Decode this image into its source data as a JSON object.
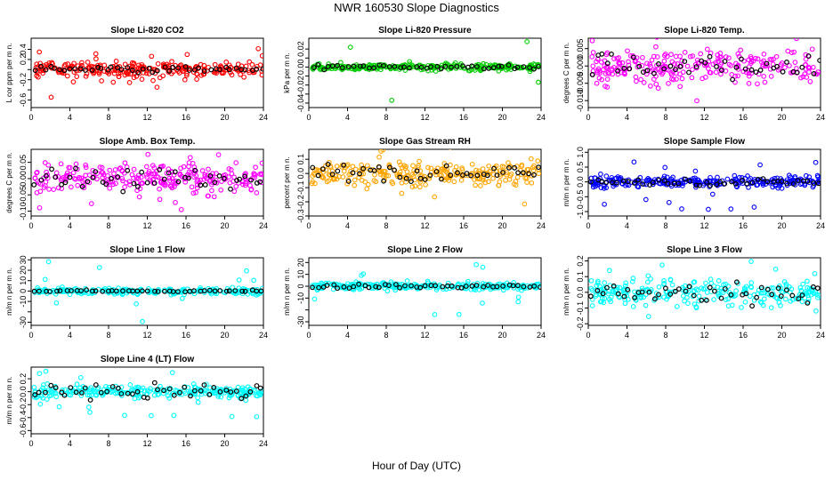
{
  "page_title": "NWR  160530  Slope Diagnostics",
  "x_axis_label": "Hour of Day (UTC)",
  "colors": {
    "highlight": "#000000",
    "red": "#ff0000",
    "green": "#00cc00",
    "magenta": "#ff00ff",
    "orange": "#ffa500",
    "blue": "#0000ff",
    "cyan": "#00ffff"
  },
  "chart_data": [
    {
      "type": "scatter",
      "title": "Slope Li-820 CO2",
      "ylabel": "L cor ppm per m n.",
      "xlim": [
        0,
        24
      ],
      "xticks": [
        0,
        4,
        8,
        12,
        16,
        20,
        24
      ],
      "ylim": [
        -0.75,
        0.62
      ],
      "yticks": [
        -0.6,
        -0.4,
        -0.2,
        0.0,
        0.2,
        0.4
      ],
      "ytick_labels": [
        "-0.6",
        "",
        "-0.2",
        "",
        "0.2",
        "0.4"
      ],
      "color": "red",
      "spread": 0.12,
      "outlier_range": 0.6,
      "black_spread": 0.06
    },
    {
      "type": "scatter",
      "title": "Slope Li-820 Pressure",
      "ylabel": "kPa per m n.",
      "xlim": [
        0,
        24
      ],
      "xticks": [
        0,
        4,
        8,
        12,
        16,
        20,
        24
      ],
      "ylim": [
        -0.045,
        0.032
      ],
      "yticks": [
        -0.04,
        -0.03,
        -0.02,
        -0.01,
        0.0,
        0.01,
        0.02
      ],
      "ytick_labels": [
        "-0.04",
        "",
        "-0.02",
        "",
        "0.00",
        "",
        "0.02"
      ],
      "color": "green",
      "spread": 0.003,
      "outlier_range": 0.04,
      "black_spread": 0.002
    },
    {
      "type": "scatter",
      "title": "Slope Li-820 Temp.",
      "ylabel": "degrees C per m n.",
      "xlim": [
        0,
        24
      ],
      "xticks": [
        0,
        4,
        8,
        12,
        16,
        20,
        24
      ],
      "ylim": [
        -0.012,
        0.008
      ],
      "yticks": [
        -0.01,
        -0.005,
        0.0,
        0.005
      ],
      "ytick_labels": [
        "-0.010",
        "-0.005",
        "0.000",
        "0.005"
      ],
      "color": "magenta",
      "spread": 0.004,
      "outlier_range": 0.011,
      "black_spread": 0.003
    },
    {
      "type": "scatter",
      "title": "Slope Amb. Box Temp.",
      "ylabel": "degrees C per m n.",
      "xlim": [
        0,
        24
      ],
      "xticks": [
        0,
        4,
        8,
        12,
        16,
        20,
        24
      ],
      "ylim": [
        -0.115,
        0.09
      ],
      "yticks": [
        -0.1,
        -0.05,
        0.0,
        0.05
      ],
      "ytick_labels": [
        "-0.10",
        "-0.05",
        "0.00",
        "0.05"
      ],
      "color": "magenta",
      "spread": 0.04,
      "outlier_range": 0.1,
      "black_spread": 0.03
    },
    {
      "type": "scatter",
      "title": "Slope Gas Stream RH",
      "ylabel": "percent per m n.",
      "xlim": [
        0,
        24
      ],
      "xticks": [
        0,
        4,
        8,
        12,
        16,
        20,
        24
      ],
      "ylim": [
        -0.3,
        0.17
      ],
      "yticks": [
        -0.3,
        -0.2,
        -0.1,
        0.0,
        0.1
      ],
      "ytick_labels": [
        "-0.3",
        "-0.2",
        "-0.1",
        "0.0",
        "0.1"
      ],
      "color": "orange",
      "spread": 0.07,
      "outlier_range": 0.25,
      "black_spread": 0.05
    },
    {
      "type": "scatter",
      "title": "Slope Sample Flow",
      "ylabel": "m/m n per m n.",
      "xlim": [
        0,
        24
      ],
      "xticks": [
        0,
        4,
        8,
        12,
        16,
        20,
        24
      ],
      "ylim": [
        -1.15,
        1.1
      ],
      "yticks": [
        -1.0,
        -0.5,
        0.0,
        0.5,
        1.0
      ],
      "ytick_labels": [
        "-1.0",
        "-0.5",
        "0.0",
        "0.5",
        "1.0"
      ],
      "color": "blue",
      "spread": 0.15,
      "outlier_range": 1.0,
      "black_spread": 0.1
    },
    {
      "type": "scatter",
      "title": "Slope Line 1 Flow",
      "ylabel": "m/m n per m n.",
      "xlim": [
        0,
        24
      ],
      "xticks": [
        0,
        4,
        8,
        12,
        16,
        20,
        24
      ],
      "ylim": [
        -33,
        32
      ],
      "yticks": [
        -30,
        -20,
        -10,
        0,
        10,
        20,
        30
      ],
      "ytick_labels": [
        "-30",
        "",
        "-10",
        "0",
        "10",
        "20",
        "30"
      ],
      "color": "cyan",
      "spread": 2.5,
      "outlier_range": 30,
      "black_spread": 0.8
    },
    {
      "type": "scatter",
      "title": "Slope Line 2 Flow",
      "ylabel": "m/m n per m n.",
      "xlim": [
        0,
        24
      ],
      "xticks": [
        0,
        4,
        8,
        12,
        16,
        20,
        24
      ],
      "ylim": [
        -33,
        24
      ],
      "yticks": [
        -30,
        -20,
        -10,
        0,
        10,
        20
      ],
      "ytick_labels": [
        "-30",
        "",
        "-10",
        "0",
        "10",
        "20"
      ],
      "color": "cyan",
      "spread": 2.5,
      "outlier_range": 25,
      "black_spread": 1.5
    },
    {
      "type": "scatter",
      "title": "Slope Line 3 Flow",
      "ylabel": "m/m n per m n.",
      "xlim": [
        0,
        24
      ],
      "xticks": [
        0,
        4,
        8,
        12,
        16,
        20,
        24
      ],
      "ylim": [
        -0.21,
        0.22
      ],
      "yticks": [
        -0.2,
        -0.1,
        0.0,
        0.1,
        0.2
      ],
      "ytick_labels": [
        "-0.2",
        "-0.1",
        "0.0",
        "0.1",
        "0.2"
      ],
      "color": "cyan",
      "spread": 0.07,
      "outlier_range": 0.2,
      "black_spread": 0.06
    },
    {
      "type": "scatter",
      "title": "Slope Line 4 (LT) Flow",
      "ylabel": "m/m n per m n.",
      "xlim": [
        0,
        24
      ],
      "xticks": [
        0,
        4,
        8,
        12,
        16,
        20,
        24
      ],
      "ylim": [
        -0.65,
        0.38
      ],
      "yticks": [
        -0.6,
        -0.4,
        -0.2,
        0.0,
        0.2
      ],
      "ytick_labels": [
        "-0.6",
        "-0.4",
        "-0.2",
        "0.0",
        "0.2"
      ],
      "color": "cyan",
      "spread": 0.08,
      "outlier_range": 0.4,
      "black_spread": 0.1
    }
  ]
}
